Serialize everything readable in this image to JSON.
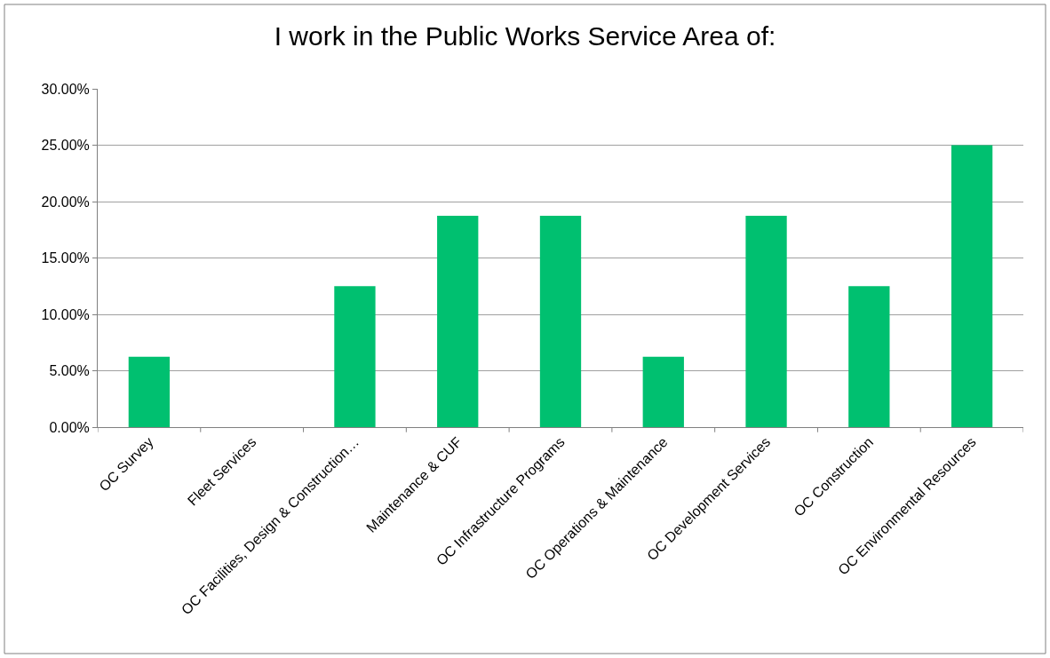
{
  "chart_data": {
    "type": "bar",
    "title": "I work in the Public Works Service Area of:",
    "categories": [
      "OC Survey",
      "Fleet Services",
      "OC Facilities, Design & Construction…",
      "Maintenance & CUF",
      "OC Infrastructure Programs",
      "OC Operations & Maintenance",
      "OC Development Services",
      "OC Construction",
      "OC Environmental Resources"
    ],
    "values": [
      6.25,
      0,
      12.5,
      18.75,
      18.75,
      6.25,
      18.75,
      12.5,
      25
    ],
    "color": "#00c070",
    "ylim": [
      0,
      30
    ],
    "yticks": [
      {
        "value": 0,
        "label": "0.00%"
      },
      {
        "value": 5,
        "label": "5.00%"
      },
      {
        "value": 10,
        "label": "10.00%"
      },
      {
        "value": 15,
        "label": "15.00%"
      },
      {
        "value": 20,
        "label": "20.00%"
      },
      {
        "value": 25,
        "label": "25.00%"
      },
      {
        "value": 30,
        "label": "30.00%"
      }
    ],
    "grid": "y",
    "legend": false
  }
}
